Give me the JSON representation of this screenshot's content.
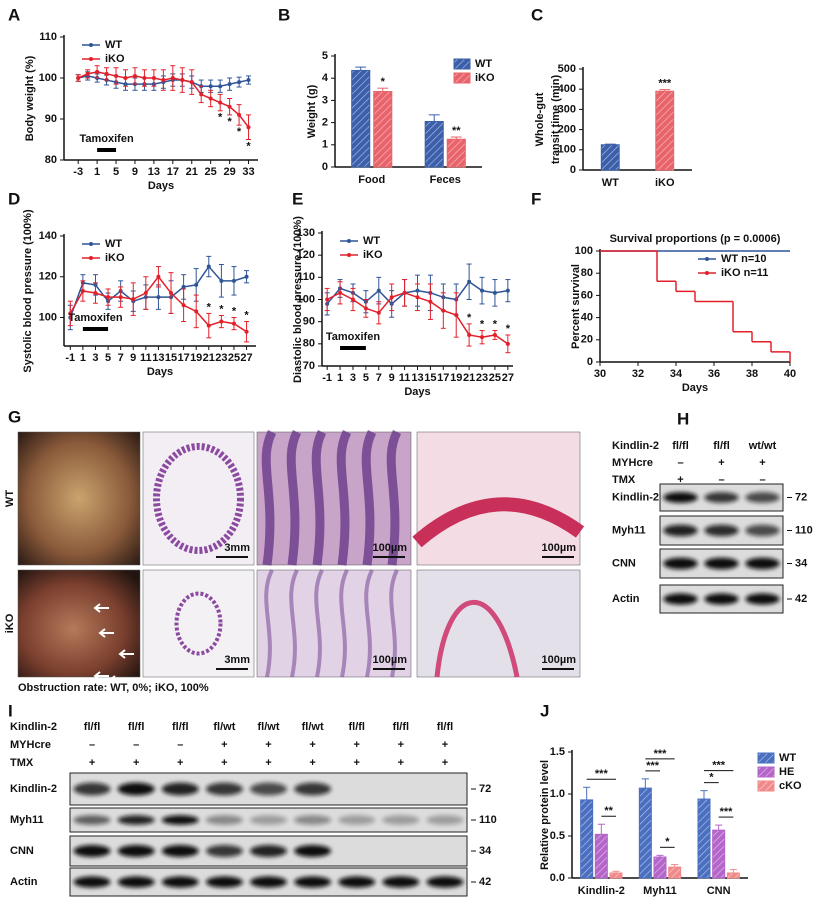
{
  "chart_data": [
    {
      "type": "line",
      "panel": "A",
      "xlabel": "Days",
      "ylabel": "Body weight (%)",
      "x": [
        -3,
        -1,
        1,
        3,
        5,
        7,
        9,
        11,
        13,
        15,
        17,
        19,
        21,
        23,
        25,
        27,
        29,
        31,
        33
      ],
      "xlim": [
        -6,
        35
      ],
      "xticks": [
        -3,
        1,
        5,
        9,
        13,
        17,
        21,
        25,
        29,
        33
      ],
      "ylim": [
        80,
        110
      ],
      "yticks": [
        80,
        90,
        100,
        110
      ],
      "legend": "upper left",
      "treatment": {
        "label": "Tamoxifen",
        "x": [
          1,
          5
        ]
      },
      "series": [
        {
          "name": "WT",
          "color": "#2f5597",
          "values": [
            100,
            100.5,
            100,
            99.5,
            99,
            98.5,
            98.5,
            98.5,
            98.5,
            99,
            99.5,
            99.5,
            99,
            98,
            98,
            98,
            98.5,
            99,
            99.5
          ],
          "errors": [
            0.8,
            1,
            1,
            1.2,
            1.5,
            1.5,
            1.5,
            1.5,
            1.5,
            1.5,
            1.5,
            1.5,
            1.5,
            1.5,
            1.5,
            1.5,
            1.5,
            1.2,
            1
          ]
        },
        {
          "name": "iKO",
          "color": "#e3202a",
          "values": [
            100,
            101,
            101.5,
            101,
            100.5,
            100,
            100.5,
            100,
            100,
            99.5,
            100,
            99.5,
            99,
            96,
            95,
            94,
            93,
            91,
            88
          ],
          "errors": [
            0.8,
            1,
            1.5,
            1.5,
            2,
            2,
            2,
            2,
            2,
            2.5,
            3,
            3,
            3,
            2,
            2,
            2,
            2,
            2.5,
            3
          ]
        }
      ],
      "annotations": [
        {
          "x": 27,
          "text": "*"
        },
        {
          "x": 29,
          "text": "*"
        },
        {
          "x": 31,
          "text": "*"
        },
        {
          "x": 33,
          "text": "*"
        }
      ]
    },
    {
      "type": "bar",
      "panel": "B",
      "ylabel": "Weight (g)",
      "categories": [
        "Food",
        "Feces"
      ],
      "ylim": [
        0,
        5
      ],
      "yticks": [
        0,
        1,
        2,
        3,
        4,
        5
      ],
      "legend": "upper right",
      "series": [
        {
          "name": "WT",
          "color": "#3c5fab",
          "values": [
            4.35,
            2.05
          ],
          "errors": [
            0.15,
            0.3
          ]
        },
        {
          "name": "iKO",
          "color": "#e8636a",
          "values": [
            3.4,
            1.25
          ],
          "errors": [
            0.15,
            0.1
          ],
          "significance": [
            "*",
            "**"
          ]
        }
      ]
    },
    {
      "type": "bar",
      "panel": "C",
      "ylabel": [
        "Whole-gut",
        "transit time (min)"
      ],
      "categories": [
        "WT",
        "iKO"
      ],
      "values": [
        125,
        390
      ],
      "errors": [
        3,
        8
      ],
      "colors": [
        "#3c5fab",
        "#e8636a"
      ],
      "significance": [
        null,
        "***"
      ],
      "ylim": [
        0,
        500
      ],
      "yticks": [
        0,
        100,
        200,
        300,
        400,
        500
      ]
    },
    {
      "type": "line",
      "panel": "D",
      "xlabel": "Days",
      "ylabel": "Systolic blood pressure (100%)",
      "x": [
        -1,
        1,
        3,
        5,
        7,
        9,
        11,
        13,
        15,
        17,
        19,
        21,
        23,
        25,
        27
      ],
      "xlim": [
        -2,
        28.5
      ],
      "xticks": [
        -1,
        1,
        3,
        5,
        7,
        9,
        11,
        13,
        15,
        17,
        19,
        21,
        23,
        25,
        27
      ],
      "ylim": [
        86,
        140
      ],
      "yticks": [
        100,
        120,
        140
      ],
      "legend": "upper left",
      "treatment": {
        "label": "Tamoxifen",
        "x": [
          1,
          5
        ]
      },
      "series": [
        {
          "name": "WT",
          "color": "#2f5597",
          "values": [
            100,
            117,
            116,
            108,
            113,
            108,
            110,
            110,
            110,
            115,
            116,
            125,
            118,
            118,
            120
          ],
          "errors": [
            6,
            4,
            5,
            4,
            5,
            5,
            6,
            6,
            8,
            6,
            8,
            5,
            8,
            7,
            3
          ]
        },
        {
          "name": "iKO",
          "color": "#e3202a",
          "values": [
            102,
            113,
            112,
            110,
            110,
            109,
            112,
            120,
            112,
            106,
            103,
            96,
            98,
            97,
            93
          ],
          "errors": [
            6,
            5,
            5,
            4,
            5,
            8,
            8,
            5,
            10,
            8,
            8,
            6,
            3,
            3,
            5
          ]
        }
      ],
      "annotations": [
        {
          "x": 21,
          "text": "*"
        },
        {
          "x": 23,
          "text": "*"
        },
        {
          "x": 25,
          "text": "*"
        },
        {
          "x": 27,
          "text": "*"
        }
      ]
    },
    {
      "type": "line",
      "panel": "E",
      "xlabel": "Days",
      "ylabel": "Diastolic blood pressure (100%)",
      "x": [
        -1,
        1,
        3,
        5,
        7,
        9,
        11,
        13,
        15,
        17,
        19,
        21,
        23,
        25,
        27
      ],
      "xlim": [
        -1.8,
        27.8
      ],
      "xticks": [
        -1,
        1,
        3,
        5,
        7,
        9,
        11,
        13,
        15,
        17,
        19,
        21,
        23,
        25,
        27
      ],
      "ylim": [
        70,
        130
      ],
      "yticks": [
        70,
        80,
        90,
        100,
        110,
        120,
        130
      ],
      "legend": "upper left",
      "treatment": {
        "label": "Tamoxifen",
        "x": [
          1,
          5
        ]
      },
      "series": [
        {
          "name": "WT",
          "color": "#2f5597",
          "values": [
            98,
            105,
            103,
            99,
            104,
            98,
            103,
            104,
            103,
            101,
            100,
            108,
            104,
            103,
            104
          ],
          "errors": [
            5,
            4,
            4,
            5,
            6,
            6,
            6,
            7,
            8,
            6,
            7,
            8,
            6,
            6,
            5
          ]
        },
        {
          "name": "iKO",
          "color": "#e3202a",
          "values": [
            100,
            103,
            100,
            96,
            94,
            101,
            103,
            101,
            99,
            95,
            93,
            84,
            83,
            84,
            80
          ],
          "errors": [
            5,
            5,
            5,
            4,
            5,
            6,
            6,
            6,
            8,
            8,
            10,
            5,
            3,
            2,
            4
          ]
        }
      ],
      "annotations": [
        {
          "x": 21,
          "text": "*"
        },
        {
          "x": 23,
          "text": "*"
        },
        {
          "x": 25,
          "text": "*"
        },
        {
          "x": 27,
          "text": "*"
        }
      ]
    },
    {
      "type": "line",
      "panel": "F",
      "step": true,
      "title": "Survival proportions (p = 0.0006)",
      "xlabel": "Days",
      "ylabel": "Percent survival",
      "xlim": [
        30,
        40
      ],
      "xticks": [
        30,
        32,
        34,
        36,
        38,
        40
      ],
      "ylim": [
        0,
        100
      ],
      "yticks": [
        0,
        20,
        40,
        60,
        80,
        100
      ],
      "legend": "upper right",
      "series": [
        {
          "name": "WT  n=10",
          "color": "#2f5597",
          "x": [
            30,
            40
          ],
          "values": [
            100,
            100
          ]
        },
        {
          "name": "iKO  n=11",
          "color": "#e3202a",
          "x": [
            30,
            33,
            34,
            35,
            37,
            38,
            39,
            40
          ],
          "values": [
            100,
            72.7,
            63.6,
            54.5,
            27.3,
            18.2,
            9.1,
            0
          ]
        }
      ]
    },
    {
      "type": "bar",
      "panel": "J",
      "ylabel": "Relative protein level",
      "categories": [
        "Kindlin-2",
        "Myh11",
        "CNN"
      ],
      "ylim": [
        0,
        1.5
      ],
      "yticks": [
        {
          "value": 0,
          "label": "0.0"
        },
        {
          "value": 0.5,
          "label": "0.5"
        },
        {
          "value": 1,
          "label": "1.0"
        },
        {
          "value": 1.5,
          "label": "1.5"
        }
      ],
      "legend": "right",
      "series": [
        {
          "name": "WT",
          "color": "#4a6fc0",
          "values": [
            0.93,
            1.07,
            0.94
          ],
          "errors": [
            0.15,
            0.11,
            0.1
          ]
        },
        {
          "name": "HE",
          "color": "#b565c9",
          "values": [
            0.52,
            0.25,
            0.57
          ],
          "errors": [
            0.12,
            0.02,
            0.06
          ]
        },
        {
          "name": "cKO",
          "color": "#f08a8a",
          "values": [
            0.06,
            0.13,
            0.06
          ],
          "errors": [
            0.02,
            0.03,
            0.04
          ]
        }
      ],
      "comparisons": [
        {
          "category": 0,
          "series": [
            1,
            2
          ],
          "text": "**"
        },
        {
          "category": 0,
          "series": [
            0,
            2
          ],
          "text": "***"
        },
        {
          "category": 1,
          "series": [
            1,
            2
          ],
          "text": "*"
        },
        {
          "category": 1,
          "series": [
            0,
            1
          ],
          "text": "***"
        },
        {
          "category": 1,
          "series": [
            0,
            2
          ],
          "text": "***"
        },
        {
          "category": 2,
          "series": [
            1,
            2
          ],
          "text": "***"
        },
        {
          "category": 2,
          "series": [
            0,
            1
          ],
          "text": "*"
        },
        {
          "category": 2,
          "series": [
            0,
            2
          ],
          "text": "***"
        }
      ]
    }
  ],
  "panel_G": {
    "letter": "G",
    "rows": [
      {
        "label": "WT",
        "scale_bars": [
          "3mm",
          "100µm",
          "100µm"
        ]
      },
      {
        "label": "iKO",
        "scale_bars": [
          "3mm",
          "100µm",
          "100µm"
        ]
      }
    ],
    "caption": "Obstruction rate: WT, 0%; iKO, 100%"
  },
  "panel_H": {
    "letter": "H",
    "conditions": [
      {
        "name": "Kindlin-2",
        "cells": [
          "fl/fl",
          "fl/fl",
          "wt/wt"
        ]
      },
      {
        "name": "MYHcre",
        "cells": [
          "–",
          "+",
          "+"
        ]
      },
      {
        "name": "TMX",
        "cells": [
          "+",
          "–",
          "–"
        ]
      }
    ],
    "blots": [
      {
        "name": "Kindlin-2",
        "kda": 72
      },
      {
        "name": "Myh11",
        "kda": 110
      },
      {
        "name": "CNN",
        "kda": 34
      },
      {
        "name": "Actin",
        "kda": 42
      }
    ]
  },
  "panel_I": {
    "letter": "I",
    "conditions": [
      {
        "name": "Kindlin-2",
        "cells": [
          "fl/fl",
          "fl/fl",
          "fl/fl",
          "fl/wt",
          "fl/wt",
          "fl/wt",
          "fl/fl",
          "fl/fl",
          "fl/fl"
        ]
      },
      {
        "name": "MYHcre",
        "cells": [
          "–",
          "–",
          "–",
          "+",
          "+",
          "+",
          "+",
          "+",
          "+"
        ]
      },
      {
        "name": "TMX",
        "cells": [
          "+",
          "+",
          "+",
          "+",
          "+",
          "+",
          "+",
          "+",
          "+"
        ]
      }
    ],
    "blots": [
      {
        "name": "Kindlin-2",
        "kda": 72
      },
      {
        "name": "Myh11",
        "kda": 110
      },
      {
        "name": "CNN",
        "kda": 34
      },
      {
        "name": "Actin",
        "kda": 42
      }
    ]
  }
}
